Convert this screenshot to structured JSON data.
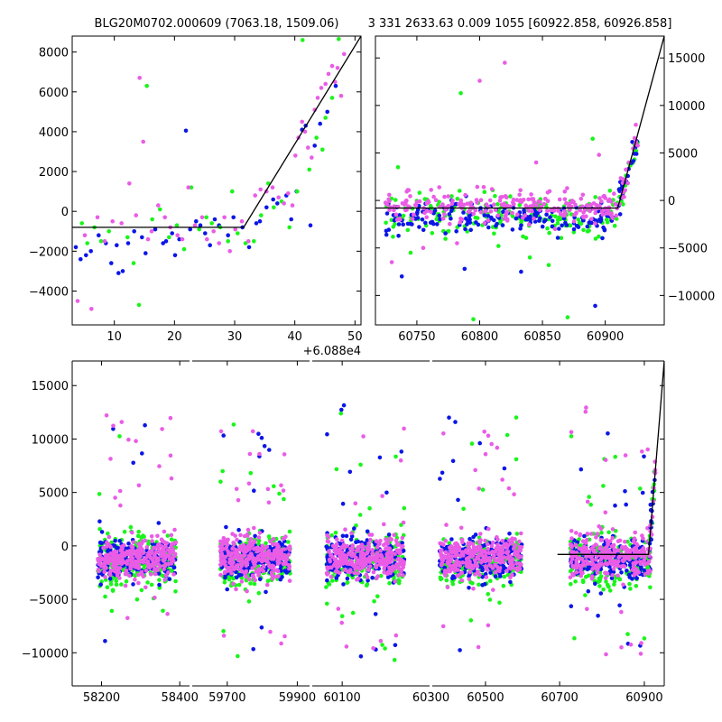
{
  "figure": {
    "title_left": "BLG20M0702.000609 (7063.18, 1509.06)",
    "title_right": "3 331 2633.63 0.009 1055 [60922.858, 60926.858]",
    "colors": {
      "blue": "#0b16e6",
      "green": "#19f51a",
      "magenta": "#ea5ce6",
      "model": "#000000"
    }
  },
  "chart_data": [
    {
      "name": "zoom-peak",
      "type": "scatter",
      "x_offset_label": "+6.088e4",
      "xlim": [
        3,
        51
      ],
      "ylim": [
        -5700,
        8800
      ],
      "xticks": [
        10,
        20,
        30,
        40,
        50
      ],
      "yticks": [
        -4000,
        -2000,
        0,
        2000,
        4000,
        6000,
        8000
      ],
      "ytick_side": "left",
      "model": {
        "x": [
          3,
          31.5,
          51
        ],
        "y": [
          -800,
          -800,
          8800
        ]
      },
      "series": [
        {
          "name": "blue",
          "x": [
            3.6,
            4.4,
            5.3,
            6.1,
            7.4,
            8.6,
            9.5,
            10.4,
            10.7,
            11.4,
            12.3,
            13.3,
            14.6,
            15.2,
            16.8,
            18.1,
            18.6,
            19.6,
            20.1,
            20.8,
            21.9,
            22.6,
            23.6,
            24.3,
            25.1,
            25.9,
            26.7,
            27.4,
            28.9,
            29.8,
            31.3,
            32.4,
            33.6,
            34.2,
            35.3,
            36.4,
            37.1,
            38.6,
            39.4,
            40.3,
            41.2,
            41.8,
            42.6,
            43.3,
            44.2,
            45.4,
            46.8
          ],
          "y": [
            -1800,
            -2400,
            -2200,
            -2000,
            -1200,
            -1600,
            -2600,
            -1700,
            -3100,
            -3000,
            -1600,
            -1000,
            -1300,
            -2100,
            -900,
            -1600,
            -1500,
            -1100,
            -2200,
            -1400,
            4050,
            -900,
            -500,
            -700,
            -1100,
            -1700,
            -400,
            -700,
            -1200,
            -300,
            -800,
            -1800,
            -600,
            -500,
            200,
            600,
            400,
            800,
            -400,
            1000,
            4100,
            4300,
            -700,
            3300,
            4400,
            5000,
            6300
          ]
        },
        {
          "name": "green",
          "x": [
            4.6,
            5.5,
            6.7,
            7.8,
            9.1,
            12.2,
            13.2,
            14.1,
            15.4,
            16.3,
            17.6,
            19.1,
            20.4,
            21.6,
            22.8,
            24.1,
            25.3,
            26.2,
            27.6,
            28.9,
            29.6,
            30.5,
            31.8,
            33.2,
            34.4,
            35.6,
            36.5,
            37.8,
            39.1,
            40.4,
            41.3,
            42.4,
            43.6,
            44.6,
            45.1,
            46.2,
            47.3
          ],
          "y": [
            -600,
            -1600,
            -800,
            -1500,
            -1000,
            -1300,
            -2600,
            -4700,
            6300,
            -400,
            100,
            -1300,
            -700,
            -1900,
            1200,
            -900,
            -300,
            -600,
            -800,
            -1500,
            1000,
            -1100,
            -1600,
            -1500,
            -200,
            1400,
            200,
            500,
            -800,
            1000,
            8600,
            2100,
            3700,
            3100,
            4700,
            5700,
            8650
          ]
        },
        {
          "name": "magenta",
          "x": [
            3.9,
            5.1,
            6.2,
            7.2,
            8.4,
            9.7,
            11.2,
            12.5,
            13.6,
            14.2,
            14.8,
            15.6,
            16.2,
            17.3,
            18.4,
            19.3,
            20.5,
            21.3,
            22.3,
            23.4,
            24.6,
            25.4,
            26.5,
            27.4,
            28.3,
            29.2,
            30.1,
            31.2,
            32.3,
            33.4,
            34.3,
            35.3,
            36.3,
            37.3,
            38.2,
            38.9,
            39.6,
            40.1,
            40.6,
            41.2,
            41.7,
            42.2,
            42.8,
            43.3,
            43.8,
            44.4,
            45.1,
            45.6,
            46.2,
            46.7,
            47.1,
            47.7,
            48.2
          ],
          "y": [
            -4500,
            -1200,
            -4900,
            -300,
            -1500,
            -500,
            -600,
            1400,
            -200,
            6700,
            3500,
            -1400,
            -1000,
            300,
            -300,
            -800,
            -1200,
            -1400,
            1200,
            -700,
            -300,
            -1400,
            -1000,
            -1600,
            -300,
            -2000,
            -900,
            -500,
            -1500,
            800,
            1100,
            1000,
            1200,
            700,
            400,
            900,
            300,
            2800,
            3700,
            4500,
            4000,
            3200,
            2700,
            5100,
            5700,
            6200,
            6400,
            6900,
            7300,
            6500,
            7200,
            5800,
            7900
          ]
        }
      ]
    },
    {
      "name": "season-2024",
      "type": "scatter",
      "xlim": [
        60717,
        60947
      ],
      "ylim": [
        -13100,
        17300
      ],
      "xticks": [
        60750,
        60800,
        60850,
        60900
      ],
      "yticks": [
        -10000,
        -5000,
        0,
        5000,
        10000,
        15000
      ],
      "ytick_side": "right",
      "model": {
        "x": [
          60717,
          60910,
          60947
        ],
        "y": [
          -800,
          -800,
          17300
        ]
      },
      "outliers": {
        "green": {
          "x": [
            60735,
            60745,
            60785,
            60795,
            60815,
            60840,
            60855,
            60870,
            60890
          ],
          "y": [
            3500,
            -5500,
            11300,
            -12500,
            -4800,
            -6000,
            -6800,
            -12300,
            6500
          ]
        },
        "magenta": {
          "x": [
            60730,
            60755,
            60782,
            60800,
            60820,
            60845,
            60860,
            60895
          ],
          "y": [
            -6500,
            -5000,
            -4500,
            12600,
            14500,
            4000,
            -3000,
            4800
          ]
        },
        "blue": {
          "x": [
            60738,
            60788,
            60833,
            60892
          ],
          "y": [
            -8000,
            -7200,
            -7500,
            -11100
          ]
        }
      }
    },
    {
      "name": "full-lightcurve",
      "type": "scatter",
      "ylim": [
        -13100,
        17300
      ],
      "yticks": [
        -10000,
        -5000,
        0,
        5000,
        10000,
        15000
      ],
      "ytick_side": "left",
      "broken_axis": true,
      "segments": [
        {
          "season": "2018",
          "xlim": [
            58125,
            58425
          ],
          "xticks": [
            58200,
            58400
          ],
          "center": 58290,
          "halfwidth": 100
        },
        {
          "season": "2022",
          "xlim": [
            59600,
            59935
          ],
          "xticks": [
            59700,
            59900
          ],
          "center": 59780,
          "halfwidth": 100
        },
        {
          "season": "2023a",
          "xlim": [
            60035,
            60290
          ],
          "xticks": [
            60100
          ],
          "center": 60150,
          "halfwidth": 85
        },
        {
          "season": "2023b",
          "xlim": [
            60390,
            60627
          ],
          "xticks": [
            60500
          ],
          "center": 60490,
          "halfwidth": 85
        },
        {
          "season": "2024",
          "xlim": [
            60670,
            60947
          ],
          "xticks": [
            60700,
            60900
          ],
          "center": 60820,
          "halfwidth": 95
        }
      ],
      "extra_ticks": [
        {
          "label": "60300",
          "between": [
            2,
            3
          ]
        }
      ],
      "model": {
        "x": [
          60695,
          60910,
          60947
        ],
        "y": [
          -800,
          -800,
          17300
        ]
      }
    }
  ]
}
